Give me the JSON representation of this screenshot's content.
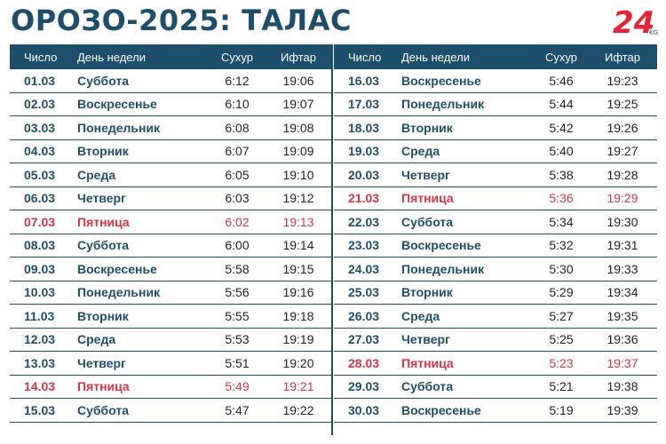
{
  "title": "ОРОЗО-2025: ТАЛАС",
  "logo": {
    "main": "24",
    "sub": "KG",
    "color": "#e32636"
  },
  "colors": {
    "primary": "#1d4e6b",
    "friday": "#d63447"
  },
  "headers": {
    "date": "Число",
    "day": "День недели",
    "suhur": "Сухур",
    "iftar": "Ифтар"
  },
  "left": [
    {
      "date": "01.03",
      "day": "Суббота",
      "suhur": "6:12",
      "iftar": "19:06",
      "friday": false
    },
    {
      "date": "02.03",
      "day": "Воскресенье",
      "suhur": "6:10",
      "iftar": "19:07",
      "friday": false
    },
    {
      "date": "03.03",
      "day": "Понедельник",
      "suhur": "6:08",
      "iftar": "19:08",
      "friday": false
    },
    {
      "date": "04.03",
      "day": "Вторник",
      "suhur": "6:07",
      "iftar": "19:09",
      "friday": false
    },
    {
      "date": "05.03",
      "day": "Среда",
      "suhur": "6:05",
      "iftar": "19:10",
      "friday": false
    },
    {
      "date": "06.03",
      "day": "Четверг",
      "suhur": "6:03",
      "iftar": "19:12",
      "friday": false
    },
    {
      "date": "07.03",
      "day": "Пятница",
      "suhur": "6:02",
      "iftar": "19:13",
      "friday": true
    },
    {
      "date": "08.03",
      "day": "Суббота",
      "suhur": "6:00",
      "iftar": "19:14",
      "friday": false
    },
    {
      "date": "09.03",
      "day": "Воскресенье",
      "suhur": "5:58",
      "iftar": "19:15",
      "friday": false
    },
    {
      "date": "10.03",
      "day": "Понедельник",
      "suhur": "5:56",
      "iftar": "19:16",
      "friday": false
    },
    {
      "date": "11.03",
      "day": "Вторник",
      "suhur": "5:55",
      "iftar": "19:18",
      "friday": false
    },
    {
      "date": "12.03",
      "day": "Среда",
      "suhur": "5:53",
      "iftar": "19:19",
      "friday": false
    },
    {
      "date": "13.03",
      "day": "Четверг",
      "suhur": "5:51",
      "iftar": "19:20",
      "friday": false
    },
    {
      "date": "14.03",
      "day": "Пятница",
      "suhur": "5:49",
      "iftar": "19:21",
      "friday": true
    },
    {
      "date": "15.03",
      "day": "Суббота",
      "suhur": "5:47",
      "iftar": "19:22",
      "friday": false
    }
  ],
  "right": [
    {
      "date": "16.03",
      "day": "Воскресенье",
      "suhur": "5:46",
      "iftar": "19:23",
      "friday": false
    },
    {
      "date": "17.03",
      "day": "Понедельник",
      "suhur": "5:44",
      "iftar": "19:25",
      "friday": false
    },
    {
      "date": "18.03",
      "day": "Вторник",
      "suhur": "5:42",
      "iftar": "19:26",
      "friday": false
    },
    {
      "date": "19.03",
      "day": "Среда",
      "suhur": "5:40",
      "iftar": "19:27",
      "friday": false
    },
    {
      "date": "20.03",
      "day": "Четверг",
      "suhur": "5:38",
      "iftar": "19:28",
      "friday": false
    },
    {
      "date": "21.03",
      "day": "Пятница",
      "suhur": "5:36",
      "iftar": "19:29",
      "friday": true
    },
    {
      "date": "22.03",
      "day": "Суббота",
      "suhur": "5:34",
      "iftar": "19:30",
      "friday": false
    },
    {
      "date": "23.03",
      "day": "Воскресенье",
      "suhur": "5:32",
      "iftar": "19:31",
      "friday": false
    },
    {
      "date": "24.03",
      "day": "Понедельник",
      "suhur": "5:30",
      "iftar": "19:33",
      "friday": false
    },
    {
      "date": "25.03",
      "day": "Вторник",
      "suhur": "5:29",
      "iftar": "19:34",
      "friday": false
    },
    {
      "date": "26.03",
      "day": "Среда",
      "suhur": "5:27",
      "iftar": "19:35",
      "friday": false
    },
    {
      "date": "27.03",
      "day": "Четверг",
      "suhur": "5:25",
      "iftar": "19:36",
      "friday": false
    },
    {
      "date": "28.03",
      "day": "Пятница",
      "suhur": "5:23",
      "iftar": "19:37",
      "friday": true
    },
    {
      "date": "29.03",
      "day": "Суббота",
      "suhur": "5:21",
      "iftar": "19:38",
      "friday": false
    },
    {
      "date": "30.03",
      "day": "Воскресенье",
      "suhur": "5:19",
      "iftar": "19:39",
      "friday": false
    }
  ]
}
